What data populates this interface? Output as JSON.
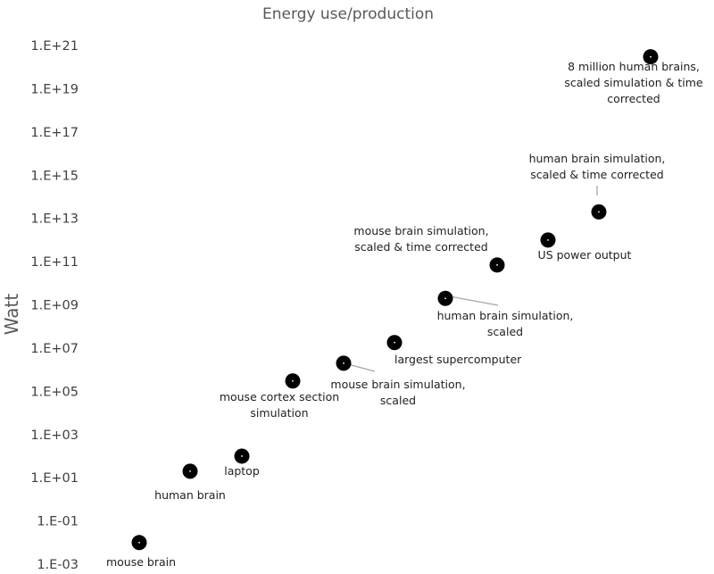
{
  "chart_data": {
    "type": "scatter",
    "title": "Energy use/production",
    "xlabel": "",
    "ylabel": "Watt",
    "y_scale": "log",
    "ylim": [
      0.001,
      1e+21
    ],
    "yticks": [
      "1.E-03",
      "1.E-01",
      "1.E+01",
      "1.E+03",
      "1.E+05",
      "1.E+07",
      "1.E+09",
      "1.E+11",
      "1.E+13",
      "1.E+15",
      "1.E+17",
      "1.E+19",
      "1.E+21"
    ],
    "grid": false,
    "points": [
      {
        "label": [
          "mouse brain"
        ],
        "y": 0.01
      },
      {
        "label": [
          "human brain"
        ],
        "y": 20
      },
      {
        "label": [
          "laptop"
        ],
        "y": 100
      },
      {
        "label": [
          "mouse cortex section",
          "simulation"
        ],
        "y": 300000
      },
      {
        "label": [
          "mouse brain simulation,",
          "scaled"
        ],
        "y": 2000000
      },
      {
        "label": [
          "largest supercomputer"
        ],
        "y": 18000000
      },
      {
        "label": [
          "human brain simulation,",
          "scaled"
        ],
        "y": 2000000000
      },
      {
        "label": [
          "mouse brain simulation,",
          "scaled & time corrected"
        ],
        "y": 70000000000
      },
      {
        "label": [
          "US power output"
        ],
        "y": 1000000000000
      },
      {
        "label": [
          "human brain simulation,",
          "scaled & time corrected"
        ],
        "y": 20000000000000
      },
      {
        "label": [
          "8 million human brains,",
          "scaled simulation & time",
          "corrected"
        ],
        "y": 3e+20
      }
    ]
  }
}
